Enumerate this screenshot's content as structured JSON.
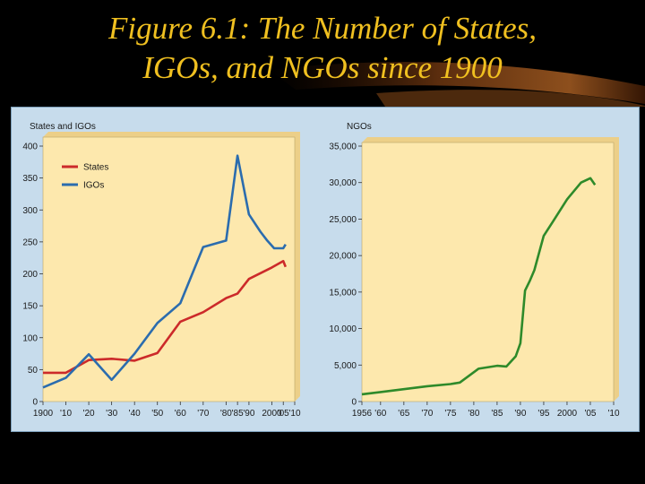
{
  "slide": {
    "title_line1": "Figure 6.1: The Number of States,",
    "title_line2": "IGOs, and NGOs since 1900"
  },
  "colors": {
    "background": "#000000",
    "title": "#f0c020",
    "panel": "#c7dcec",
    "plot_area": "#fde8ad",
    "states": "#cc2a2a",
    "igos": "#2b6cae",
    "ngos": "#2e8a2a"
  },
  "chart_data": [
    {
      "type": "line",
      "title": "States and IGOs",
      "xlabel": "",
      "ylabel": "",
      "x_ticks": [
        1900,
        1910,
        1920,
        1930,
        1940,
        1950,
        1960,
        1970,
        1980,
        1985,
        1990,
        2000,
        2005,
        2010
      ],
      "x_tick_labels": [
        "1900",
        "'10",
        "'20",
        "'30",
        "'40",
        "'50",
        "'60",
        "'70",
        "'80",
        "'85",
        "'90",
        "2000",
        "'05",
        "'10"
      ],
      "y_ticks": [
        0,
        50,
        100,
        150,
        200,
        250,
        300,
        350,
        400
      ],
      "ylim": [
        0,
        400
      ],
      "grid": false,
      "legend": "top-left",
      "series": [
        {
          "name": "States",
          "x": [
            1900,
            1910,
            1920,
            1930,
            1940,
            1950,
            1960,
            1970,
            1980,
            1985,
            1990,
            2000,
            2005,
            2006
          ],
          "values": [
            45,
            45,
            65,
            67,
            64,
            76,
            125,
            140,
            162,
            169,
            192,
            210,
            220,
            211
          ]
        },
        {
          "name": "IGOs",
          "x": [
            1900,
            1910,
            1920,
            1930,
            1940,
            1950,
            1960,
            1970,
            1980,
            1985,
            1990,
            1995,
            1998,
            2001,
            2005,
            2006
          ],
          "values": [
            22,
            37,
            74,
            34,
            75,
            123,
            154,
            242,
            252,
            385,
            293,
            266,
            252,
            240,
            240,
            246
          ]
        }
      ]
    },
    {
      "type": "line",
      "title": "NGOs",
      "xlabel": "",
      "ylabel": "",
      "x_ticks": [
        1956,
        1960,
        1965,
        1970,
        1975,
        1980,
        1985,
        1990,
        1995,
        2000,
        2005,
        2010
      ],
      "x_tick_labels": [
        "1956",
        "'60",
        "'65",
        "'70",
        "'75",
        "'80",
        "'85",
        "'90",
        "'95",
        "2000",
        "'05",
        "'10"
      ],
      "y_ticks": [
        0,
        5000,
        10000,
        15000,
        20000,
        25000,
        30000,
        35000
      ],
      "y_tick_labels": [
        "0",
        "5,000",
        "10,000",
        "15,000",
        "20,000",
        "25,000",
        "30,000",
        "35,000"
      ],
      "ylim": [
        0,
        35000
      ],
      "grid": false,
      "series": [
        {
          "name": "NGOs",
          "x": [
            1956,
            1960,
            1965,
            1970,
            1975,
            1977,
            1981,
            1985,
            1987,
            1989,
            1990,
            1991,
            1992,
            1993,
            1995,
            1997,
            2000,
            2003,
            2005,
            2006
          ],
          "values": [
            1000,
            1300,
            1700,
            2100,
            2400,
            2600,
            4500,
            4900,
            4800,
            6200,
            8000,
            15200,
            16500,
            18000,
            22700,
            24700,
            27700,
            30000,
            30600,
            29700
          ]
        }
      ]
    }
  ]
}
